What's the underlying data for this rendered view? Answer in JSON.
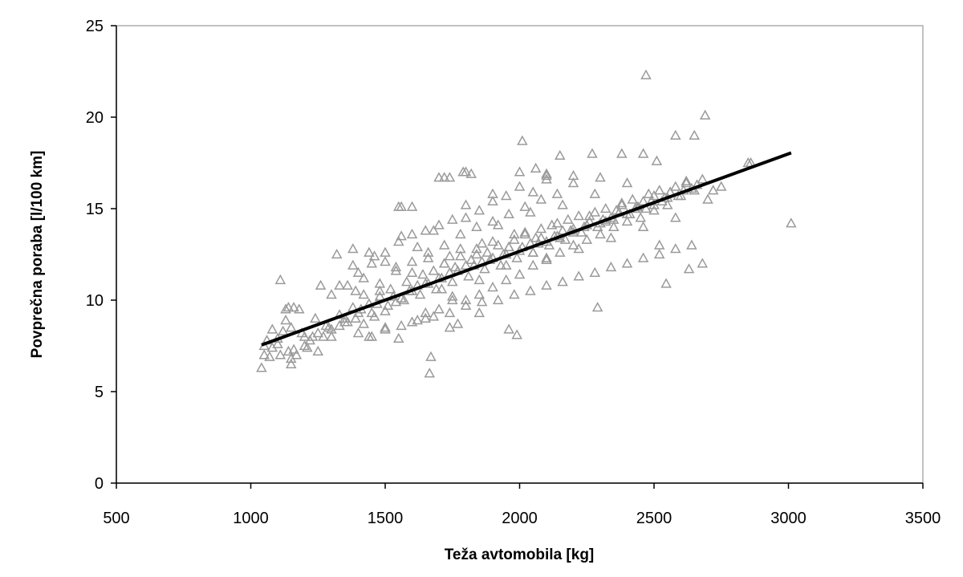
{
  "chart_data": {
    "type": "scatter",
    "title": "",
    "xlabel": "Teža avtomobila [kg]",
    "ylabel": "Povprečna poraba [l/100 km]",
    "xlim": [
      500,
      3500
    ],
    "ylim": [
      0,
      25
    ],
    "x_ticks": [
      500,
      1000,
      1500,
      2000,
      2500,
      3000,
      3500
    ],
    "y_ticks": [
      0,
      5,
      10,
      15,
      20,
      25
    ],
    "x_tick_labels": [
      "500",
      "1000",
      "1500",
      "2000",
      "2500",
      "3000",
      "3500"
    ],
    "y_tick_labels": [
      "0",
      "5",
      "10",
      "15",
      "20",
      "25"
    ],
    "grid": false,
    "legend": "none",
    "marker": "triangle-open",
    "marker_color": "#9a9a9a",
    "trendline": {
      "x": [
        1040,
        3010
      ],
      "y": [
        7.55,
        18.05
      ],
      "color": "#000000"
    },
    "points": {
      "x": [
        1040,
        1050,
        1060,
        1080,
        1100,
        1120,
        1140,
        1150,
        1170,
        1200,
        1220,
        1250,
        1280,
        1300,
        1330,
        1360,
        1380,
        1400,
        1420,
        1440,
        1460,
        1480,
        1500,
        1520,
        1540,
        1560,
        1580,
        1600,
        1620,
        1640,
        1660,
        1680,
        1700,
        1720,
        1740,
        1760,
        1780,
        1800,
        1820,
        1840,
        1860,
        1880,
        1900,
        1920,
        1940,
        1960,
        1980,
        2000,
        2020,
        2040,
        2060,
        2080,
        2100,
        2120,
        2140,
        2160,
        2180,
        2200,
        2220,
        2240,
        2260,
        2280,
        2300,
        2320,
        2340,
        2360,
        2380,
        2400,
        2420,
        2440,
        2460,
        2480,
        2500,
        2520,
        2540,
        2560,
        2580,
        2600,
        2620,
        2640,
        2660,
        2680,
        2700,
        2720,
        2750,
        2850,
        1050,
        1080,
        1110,
        1130,
        1150,
        1180,
        1210,
        1240,
        1270,
        1300,
        1330,
        1360,
        1390,
        1420,
        1450,
        1480,
        1510,
        1540,
        1570,
        1600,
        1630,
        1660,
        1690,
        1720,
        1750,
        1780,
        1810,
        1840,
        1870,
        1900,
        1930,
        1960,
        1990,
        2020,
        2050,
        2080,
        2110,
        2140,
        2170,
        2200,
        2230,
        2260,
        2290,
        2320,
        2350,
        2380,
        2410,
        2440,
        2470,
        2500,
        2530,
        2560,
        2590,
        2620,
        2650,
        1070,
        1100,
        1130,
        1160,
        1190,
        1230,
        1260,
        1290,
        1320,
        1350,
        1380,
        1410,
        1440,
        1470,
        1500,
        1530,
        1560,
        1590,
        1620,
        1650,
        1680,
        1710,
        1740,
        1770,
        1800,
        1830,
        1860,
        1890,
        1920,
        1950,
        1980,
        2010,
        2040,
        2070,
        2100,
        2130,
        2160,
        2190,
        2220,
        2250,
        2280,
        2310,
        2340,
        2370,
        2400,
        2430,
        2460,
        2490,
        2520,
        2550,
        2580,
        2610,
        1150,
        1200,
        1250,
        1300,
        1350,
        1400,
        1450,
        1500,
        1550,
        1600,
        1650,
        1700,
        1750,
        1800,
        1850,
        1900,
        1950,
        2000,
        2050,
        2100,
        2150,
        2200,
        2250,
        2300,
        2350,
        2400,
        2450,
        2500,
        2550,
        1400,
        1450,
        1500,
        1550,
        1600,
        1650,
        1700,
        1750,
        1800,
        1850,
        1900,
        1950,
        2000,
        2050,
        2100,
        1420,
        1480,
        1540,
        1600,
        1660,
        1720,
        1780,
        1840,
        1900,
        1960,
        2020,
        2080,
        2140,
        2200,
        1600,
        1700,
        1800,
        1900,
        2000,
        2100,
        2200,
        2300,
        1650,
        1750,
        1850,
        1950,
        2050,
        2150,
        1440,
        1500,
        1560,
        1620,
        1680,
        1740,
        1800,
        1860,
        1920,
        1980,
        2040,
        2100,
        2160,
        2220,
        2280,
        2340,
        2400,
        2460,
        2520,
        2580,
        2640,
        2470,
        2690,
        2010,
        2580,
        2650,
        2860,
        3010,
        1670,
        1665,
        1740,
        1770,
        2290,
        2545,
        2630,
        2680,
        1990,
        1960,
        1850,
        1710,
        1740,
        1790,
        1820,
        2060,
        2100,
        2270,
        2380,
        2150,
        1550,
        1560,
        1720,
        2460,
        2510,
        1110,
        1140,
        1160,
        1330,
        1380,
        1460,
        1390
      ],
      "y": [
        6.3,
        7.0,
        7.8,
        7.4,
        7.6,
        8.3,
        7.2,
        8.5,
        7.0,
        8.0,
        7.8,
        8.2,
        8.6,
        8.4,
        9.2,
        8.8,
        9.6,
        9.3,
        8.7,
        9.8,
        9.1,
        10.2,
        9.4,
        10.6,
        9.9,
        10.1,
        11.0,
        10.5,
        10.8,
        11.4,
        10.9,
        11.6,
        11.2,
        12.0,
        11.5,
        11.8,
        12.4,
        11.9,
        12.2,
        12.8,
        12.1,
        12.6,
        12.3,
        13.0,
        12.5,
        12.9,
        13.3,
        12.7,
        13.6,
        13.1,
        13.4,
        13.9,
        13.2,
        14.1,
        13.5,
        13.8,
        14.4,
        13.7,
        14.6,
        14.0,
        14.3,
        14.8,
        14.2,
        15.0,
        14.5,
        14.9,
        15.3,
        14.7,
        15.5,
        15.1,
        15.4,
        15.8,
        15.2,
        16.0,
        15.6,
        15.9,
        16.2,
        15.7,
        16.5,
        16.1,
        16.3,
        16.6,
        15.5,
        16.0,
        16.2,
        17.5,
        7.5,
        8.4,
        7.0,
        8.9,
        6.8,
        9.5,
        7.4,
        9.0,
        8.0,
        10.3,
        8.6,
        10.8,
        9.0,
        11.2,
        9.3,
        10.5,
        9.7,
        11.8,
        10.0,
        11.5,
        10.3,
        12.3,
        10.6,
        12.0,
        11.0,
        12.8,
        11.3,
        12.5,
        11.7,
        13.2,
        11.9,
        12.9,
        12.3,
        13.7,
        12.6,
        13.4,
        13.0,
        14.2,
        13.3,
        13.9,
        13.7,
        14.6,
        14.0,
        14.3,
        14.4,
        15.2,
        14.7,
        15.0,
        15.0,
        15.7,
        15.4,
        15.9,
        15.7,
        16.4,
        16.0,
        6.9,
        7.9,
        9.5,
        7.3,
        8.2,
        8.0,
        10.8,
        8.5,
        12.5,
        9.0,
        11.9,
        9.5,
        12.6,
        9.8,
        12.1,
        10.2,
        13.5,
        10.5,
        12.9,
        10.9,
        13.8,
        11.2,
        12.4,
        11.6,
        14.5,
        11.9,
        13.1,
        12.2,
        14.1,
        12.5,
        13.6,
        12.9,
        14.8,
        13.1,
        12.3,
        13.5,
        15.2,
        13.8,
        12.8,
        14.1,
        15.8,
        14.4,
        13.4,
        14.8,
        16.4,
        15.0,
        14.0,
        15.4,
        13.0,
        15.6,
        14.5,
        16.0,
        6.5,
        7.5,
        7.2,
        8.0,
        8.8,
        8.2,
        8.0,
        8.5,
        7.9,
        8.8,
        9.3,
        9.5,
        10.0,
        10.0,
        10.3,
        10.7,
        11.1,
        11.4,
        11.9,
        12.2,
        12.6,
        13.0,
        13.3,
        13.6,
        14.0,
        14.3,
        14.5,
        14.9,
        15.2,
        11.5,
        12.0,
        12.6,
        13.2,
        13.6,
        13.8,
        14.1,
        14.4,
        15.2,
        14.9,
        15.4,
        15.7,
        16.2,
        15.9,
        16.8,
        10.3,
        10.9,
        11.6,
        12.1,
        12.6,
        13.0,
        13.6,
        14.0,
        14.3,
        14.7,
        15.1,
        15.5,
        15.8,
        16.4,
        15.1,
        16.7,
        17.0,
        15.8,
        17.0,
        16.9,
        16.8,
        16.7,
        9.0,
        10.2,
        11.1,
        11.9,
        12.6,
        13.4,
        8.0,
        8.4,
        8.6,
        8.9,
        9.1,
        9.3,
        9.7,
        9.9,
        10.0,
        10.3,
        10.5,
        10.8,
        11.0,
        11.3,
        11.5,
        11.8,
        12.0,
        12.3,
        12.5,
        12.8,
        13.0,
        22.3,
        20.1,
        18.7,
        19.0,
        19.0,
        17.5,
        14.2,
        6.9,
        6.0,
        8.5,
        8.7,
        9.6,
        10.9,
        11.7,
        12.0,
        8.1,
        8.4,
        9.3,
        10.6,
        16.7,
        17.0,
        16.9,
        17.2,
        16.6,
        18.0,
        18.0,
        17.9,
        15.1,
        15.1,
        16.7,
        18.0,
        17.6,
        11.1,
        9.6,
        9.6,
        10.8,
        12.8,
        12.4,
        10.5
      ]
    }
  }
}
